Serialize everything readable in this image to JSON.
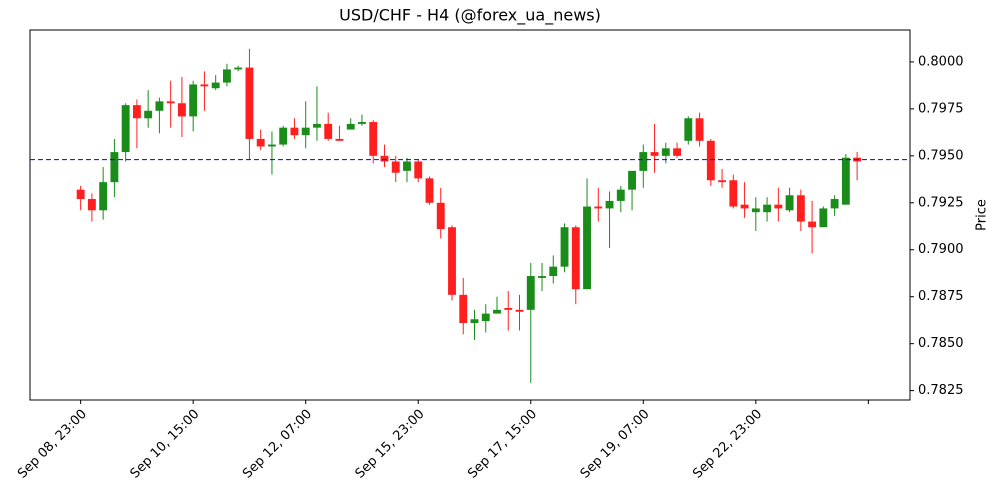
{
  "chart_data": {
    "type": "candlestick",
    "title": "USD/CHF - H4 (@forex_ua_news)",
    "y_label": "Price",
    "up_color": "#1a8c1a",
    "down_color": "#ff1f1f",
    "hline": 0.7948,
    "hline_color": "#0000ff",
    "x": [
      0,
      1,
      2,
      3,
      4,
      5,
      6,
      7,
      8,
      9,
      10,
      11,
      12,
      13,
      14,
      15,
      16,
      17,
      18,
      19,
      20,
      21,
      22,
      23,
      24,
      25,
      26,
      27,
      28,
      29,
      30,
      31,
      32,
      33,
      34,
      35,
      36,
      37,
      38,
      39,
      40,
      41,
      42,
      43,
      44,
      45,
      46,
      47,
      48,
      49,
      50,
      51,
      52,
      53,
      54,
      55,
      56,
      57,
      58,
      59,
      60,
      61,
      62,
      63,
      64,
      65,
      66,
      67,
      68,
      69
    ],
    "open": [
      0.7932,
      0.7927,
      0.7921,
      0.7936,
      0.7952,
      0.7977,
      0.797,
      0.7974,
      0.7979,
      0.7978,
      0.7971,
      0.7988,
      0.7986,
      0.7989,
      0.7996,
      0.7997,
      0.7959,
      0.7955,
      0.7956,
      0.7965,
      0.7961,
      0.7965,
      0.7967,
      0.7959,
      0.7964,
      0.7967,
      0.7968,
      0.795,
      0.7947,
      0.7942,
      0.7947,
      0.7938,
      0.7925,
      0.7912,
      0.7876,
      0.7861,
      0.7862,
      0.7866,
      0.7869,
      0.7868,
      0.7868,
      0.7885,
      0.7886,
      0.7891,
      0.7912,
      0.7879,
      0.7923,
      0.7922,
      0.7926,
      0.7932,
      0.7942,
      0.7952,
      0.795,
      0.7954,
      0.7958,
      0.797,
      0.7958,
      0.7937,
      0.7937,
      0.7924,
      0.792,
      0.792,
      0.7924,
      0.7921,
      0.7929,
      0.7915,
      0.7912,
      0.7922,
      0.7924,
      0.7949
    ],
    "high": [
      0.7934,
      0.793,
      0.7944,
      0.7959,
      0.7978,
      0.798,
      0.7985,
      0.7981,
      0.799,
      0.7992,
      0.799,
      0.7995,
      0.7993,
      0.7999,
      0.7998,
      0.8007,
      0.7964,
      0.7963,
      0.7966,
      0.797,
      0.7979,
      0.7987,
      0.7973,
      0.7966,
      0.797,
      0.7972,
      0.7969,
      0.7956,
      0.795,
      0.7949,
      0.7948,
      0.7939,
      0.7933,
      0.7913,
      0.7885,
      0.7868,
      0.7871,
      0.7875,
      0.7878,
      0.7876,
      0.7893,
      0.7893,
      0.7897,
      0.7914,
      0.7913,
      0.7938,
      0.7933,
      0.7931,
      0.7934,
      0.7942,
      0.7956,
      0.7967,
      0.7957,
      0.7957,
      0.7971,
      0.7973,
      0.7959,
      0.7943,
      0.794,
      0.7936,
      0.7928,
      0.7928,
      0.7933,
      0.7933,
      0.7932,
      0.7926,
      0.7923,
      0.7929,
      0.7951,
      0.7952
    ],
    "low": [
      0.7921,
      0.7915,
      0.7916,
      0.7928,
      0.7947,
      0.7954,
      0.7965,
      0.7962,
      0.7965,
      0.796,
      0.7963,
      0.7974,
      0.7985,
      0.7987,
      0.7995,
      0.7948,
      0.7953,
      0.794,
      0.7955,
      0.7959,
      0.7954,
      0.7958,
      0.7958,
      0.7958,
      0.7964,
      0.7966,
      0.7946,
      0.7944,
      0.7936,
      0.7936,
      0.7936,
      0.7924,
      0.7906,
      0.7873,
      0.7855,
      0.7852,
      0.7856,
      0.7866,
      0.7857,
      0.7857,
      0.7829,
      0.7878,
      0.7882,
      0.7888,
      0.7871,
      0.7879,
      0.7915,
      0.7901,
      0.792,
      0.7921,
      0.7933,
      0.7941,
      0.7946,
      0.7949,
      0.7956,
      0.7955,
      0.7934,
      0.7933,
      0.7922,
      0.7917,
      0.791,
      0.7915,
      0.7915,
      0.792,
      0.791,
      0.7898,
      0.7912,
      0.7918,
      0.7924,
      0.7937
    ],
    "close": [
      0.7927,
      0.7921,
      0.7936,
      0.7952,
      0.7977,
      0.797,
      0.7974,
      0.7979,
      0.7978,
      0.7971,
      0.7988,
      0.7987,
      0.7989,
      0.7996,
      0.7997,
      0.7959,
      0.7955,
      0.7956,
      0.7965,
      0.7961,
      0.7965,
      0.7967,
      0.7959,
      0.7958,
      0.7967,
      0.7968,
      0.795,
      0.7947,
      0.7941,
      0.7947,
      0.7938,
      0.7925,
      0.7911,
      0.7876,
      0.7861,
      0.7863,
      0.7866,
      0.7868,
      0.7868,
      0.7867,
      0.7886,
      0.7886,
      0.7891,
      0.7912,
      0.7879,
      0.7923,
      0.7922,
      0.7926,
      0.7932,
      0.7942,
      0.7952,
      0.795,
      0.7954,
      0.795,
      0.797,
      0.7958,
      0.7937,
      0.7936,
      0.7923,
      0.7922,
      0.7922,
      0.7924,
      0.7922,
      0.7929,
      0.7915,
      0.7912,
      0.7922,
      0.7927,
      0.7949,
      0.7947
    ],
    "xlim": [
      -4.5,
      73.7
    ],
    "xticks": [
      {
        "value": 0,
        "label": "Sep 08, 23:00"
      },
      {
        "value": 10,
        "label": "Sep 10, 15:00"
      },
      {
        "value": 20,
        "label": "Sep 12, 07:00"
      },
      {
        "value": 30,
        "label": "Sep 15, 23:00"
      },
      {
        "value": 40,
        "label": "Sep 17, 15:00"
      },
      {
        "value": 50,
        "label": "Sep 19, 07:00"
      },
      {
        "value": 60,
        "label": "Sep 22, 23:00"
      },
      {
        "value": 70,
        "label": null
      }
    ],
    "ylim": [
      0.782,
      0.8017
    ],
    "yticks": [
      0.7825,
      {
        "value": 0.785,
        "label": "0.7850"
      },
      0.7875,
      {
        "value": 0.79,
        "label": "0.7900"
      },
      0.7925,
      {
        "value": 0.795,
        "label": "0.7950"
      },
      0.7975,
      {
        "value": 0.8,
        "label": "0.8000"
      }
    ]
  }
}
